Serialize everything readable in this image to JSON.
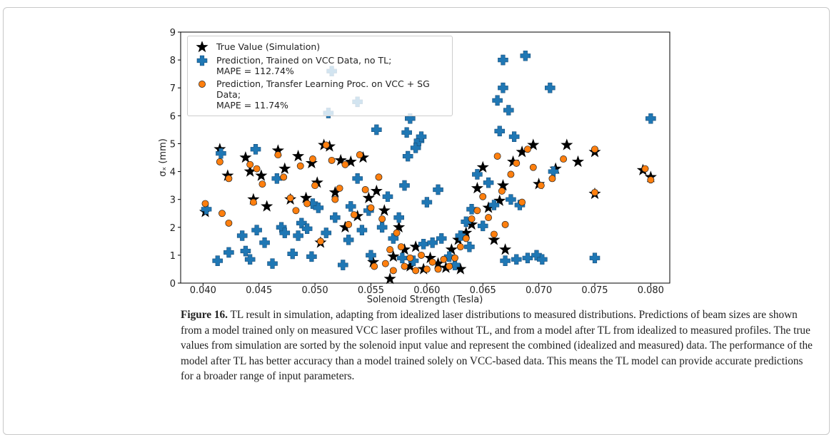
{
  "chart_data": {
    "type": "scatter",
    "x_label": "Solenoid Strength (Tesla)",
    "y_label": "σₓ (mm)",
    "xlim": [
      0.038,
      0.0817
    ],
    "ylim": [
      0,
      9
    ],
    "xticks": [
      {
        "value": 0.04,
        "label": "0.040"
      },
      {
        "value": 0.045,
        "label": "0.045"
      },
      {
        "value": 0.05,
        "label": "0.050"
      },
      {
        "value": 0.055,
        "label": "0.055"
      },
      {
        "value": 0.06,
        "label": "0.060"
      },
      {
        "value": 0.065,
        "label": "0.065"
      },
      {
        "value": 0.07,
        "label": "0.070"
      },
      {
        "value": 0.075,
        "label": "0.075"
      },
      {
        "value": 0.08,
        "label": "0.080"
      }
    ],
    "yticks": [
      0,
      1,
      2,
      3,
      4,
      5,
      6,
      7,
      8,
      9
    ],
    "legend": "upper left",
    "series": [
      {
        "name": "True Value (Simulation)",
        "color": "#000000",
        "marker": "star",
        "x": [
          0.0402,
          0.0415,
          0.0422,
          0.0438,
          0.0442,
          0.0445,
          0.0452,
          0.0457,
          0.0467,
          0.0473,
          0.0478,
          0.0485,
          0.0492,
          0.0497,
          0.0502,
          0.0505,
          0.0508,
          0.0513,
          0.0518,
          0.0523,
          0.0527,
          0.0532,
          0.0538,
          0.0543,
          0.0548,
          0.0552,
          0.0555,
          0.0562,
          0.0567,
          0.057,
          0.0575,
          0.058,
          0.0585,
          0.059,
          0.0597,
          0.0603,
          0.061,
          0.0617,
          0.0622,
          0.0628,
          0.063,
          0.0635,
          0.064,
          0.0645,
          0.065,
          0.0655,
          0.066,
          0.0665,
          0.0668,
          0.067,
          0.0677,
          0.0685,
          0.0695,
          0.07,
          0.0715,
          0.0725,
          0.0735,
          0.075,
          0.075,
          0.0793,
          0.08
        ],
        "values": [
          2.55,
          4.8,
          3.85,
          4.5,
          4.0,
          3.0,
          3.85,
          2.75,
          4.75,
          4.1,
          3.0,
          4.55,
          3.05,
          4.3,
          3.6,
          1.45,
          4.95,
          4.9,
          3.25,
          4.4,
          2.0,
          4.35,
          2.4,
          4.5,
          3.05,
          0.75,
          3.3,
          2.6,
          0.15,
          0.95,
          2.0,
          1.2,
          0.6,
          1.3,
          0.5,
          0.9,
          0.7,
          0.55,
          1.2,
          1.55,
          0.5,
          1.8,
          2.1,
          3.4,
          4.15,
          2.7,
          1.55,
          2.95,
          3.5,
          1.2,
          4.35,
          4.7,
          4.95,
          3.55,
          4.1,
          4.95,
          4.35,
          4.7,
          3.2,
          4.05,
          3.8
        ]
      },
      {
        "name": "Prediction, Trained on VCC Data, no TL;\n MAPE = 112.74%",
        "color": "#1f77b4",
        "marker": "plus",
        "x": [
          0.0403,
          0.0413,
          0.0416,
          0.0423,
          0.0435,
          0.0438,
          0.0442,
          0.0447,
          0.0448,
          0.0455,
          0.0462,
          0.0466,
          0.047,
          0.0473,
          0.048,
          0.0485,
          0.0488,
          0.0493,
          0.0497,
          0.0498,
          0.0503,
          0.051,
          0.0512,
          0.0515,
          0.0518,
          0.0525,
          0.053,
          0.0532,
          0.0538,
          0.0538,
          0.0542,
          0.0548,
          0.055,
          0.0555,
          0.056,
          0.0565,
          0.057,
          0.0575,
          0.0578,
          0.058,
          0.0582,
          0.0583,
          0.0585,
          0.0588,
          0.059,
          0.0593,
          0.0595,
          0.0597,
          0.06,
          0.0605,
          0.061,
          0.0613,
          0.062,
          0.0625,
          0.063,
          0.0635,
          0.0638,
          0.064,
          0.0645,
          0.065,
          0.0655,
          0.066,
          0.0663,
          0.0665,
          0.0668,
          0.0668,
          0.067,
          0.0673,
          0.0675,
          0.0678,
          0.068,
          0.0683,
          0.0688,
          0.069,
          0.0698,
          0.0703,
          0.071,
          0.0713,
          0.075,
          0.08
        ],
        "values": [
          2.65,
          0.8,
          4.65,
          1.1,
          1.7,
          1.15,
          0.85,
          4.8,
          1.9,
          1.45,
          0.7,
          3.75,
          2.0,
          1.8,
          1.05,
          1.7,
          2.15,
          1.95,
          0.95,
          2.85,
          2.7,
          1.8,
          6.1,
          7.6,
          2.35,
          0.65,
          1.55,
          2.75,
          6.5,
          3.75,
          1.9,
          2.6,
          1.0,
          5.5,
          2.0,
          3.1,
          1.6,
          2.35,
          0.9,
          3.5,
          5.4,
          4.55,
          5.9,
          0.8,
          4.85,
          5.1,
          5.25,
          1.4,
          2.9,
          1.45,
          3.35,
          1.6,
          0.95,
          0.65,
          1.7,
          2.2,
          1.3,
          2.65,
          3.9,
          2.05,
          3.6,
          2.8,
          6.55,
          5.45,
          8.0,
          7.0,
          0.8,
          6.2,
          3.0,
          5.25,
          0.85,
          2.8,
          8.15,
          0.9,
          1.0,
          0.85,
          7.0,
          4.0,
          0.9,
          5.9
        ]
      },
      {
        "name": "Prediction, Transfer Learning Proc. on VCC + SG Data;\n MAPE = 11.74%",
        "color": "#ff7f0e",
        "marker": "circle",
        "x": [
          0.0402,
          0.0415,
          0.0417,
          0.0423,
          0.0423,
          0.0442,
          0.0445,
          0.0448,
          0.0453,
          0.0467,
          0.0472,
          0.0478,
          0.0483,
          0.0487,
          0.0493,
          0.0498,
          0.05,
          0.0505,
          0.051,
          0.0515,
          0.0518,
          0.0522,
          0.0527,
          0.053,
          0.0535,
          0.054,
          0.0545,
          0.055,
          0.0553,
          0.0557,
          0.056,
          0.0563,
          0.0567,
          0.057,
          0.0573,
          0.0577,
          0.058,
          0.0585,
          0.059,
          0.0595,
          0.06,
          0.0605,
          0.061,
          0.0615,
          0.062,
          0.0625,
          0.063,
          0.0635,
          0.064,
          0.0645,
          0.065,
          0.0655,
          0.066,
          0.0663,
          0.0667,
          0.067,
          0.0675,
          0.068,
          0.0685,
          0.069,
          0.0695,
          0.0702,
          0.0712,
          0.0722,
          0.075,
          0.075,
          0.0795,
          0.08
        ],
        "values": [
          2.85,
          4.35,
          2.5,
          2.15,
          3.75,
          4.25,
          2.9,
          4.1,
          3.55,
          4.6,
          3.8,
          3.05,
          2.6,
          4.2,
          2.85,
          4.45,
          3.5,
          1.5,
          4.95,
          4.4,
          3.0,
          3.4,
          4.25,
          2.1,
          2.45,
          4.6,
          3.35,
          2.7,
          0.6,
          3.8,
          2.3,
          0.7,
          1.2,
          0.45,
          1.8,
          1.3,
          0.6,
          0.9,
          0.45,
          1.0,
          0.5,
          0.75,
          0.5,
          0.85,
          0.6,
          0.9,
          1.3,
          1.6,
          2.3,
          2.6,
          3.1,
          2.35,
          1.75,
          4.55,
          3.3,
          2.1,
          3.9,
          4.3,
          2.9,
          4.8,
          4.15,
          3.5,
          3.75,
          4.45,
          4.8,
          3.25,
          4.1,
          3.7
        ]
      }
    ]
  },
  "figure_caption": {
    "label": "Figure 16.",
    "text": " TL result in simulation, adapting from idealized laser distributions to measured distributions. Predictions of beam sizes are shown from a model trained only on measured VCC laser profiles without TL, and from a model after TL from idealized to measured profiles. The true values from simulation are sorted by the solenoid input value and represent the combined (idealized and measured) data. The performance of the model after TL has better accuracy than a model trained solely on VCC-based data. This means the TL model can provide accurate predictions for a broader range of input parameters."
  }
}
